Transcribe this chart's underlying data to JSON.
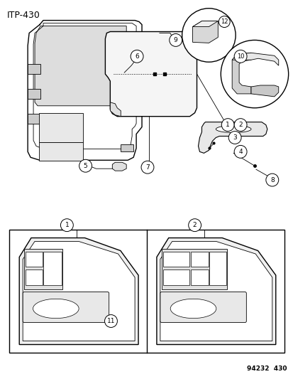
{
  "title": "ITP-430",
  "footer": "94232  430",
  "bg_color": "#ffffff",
  "title_fontsize": 9,
  "footer_fontsize": 6.5
}
